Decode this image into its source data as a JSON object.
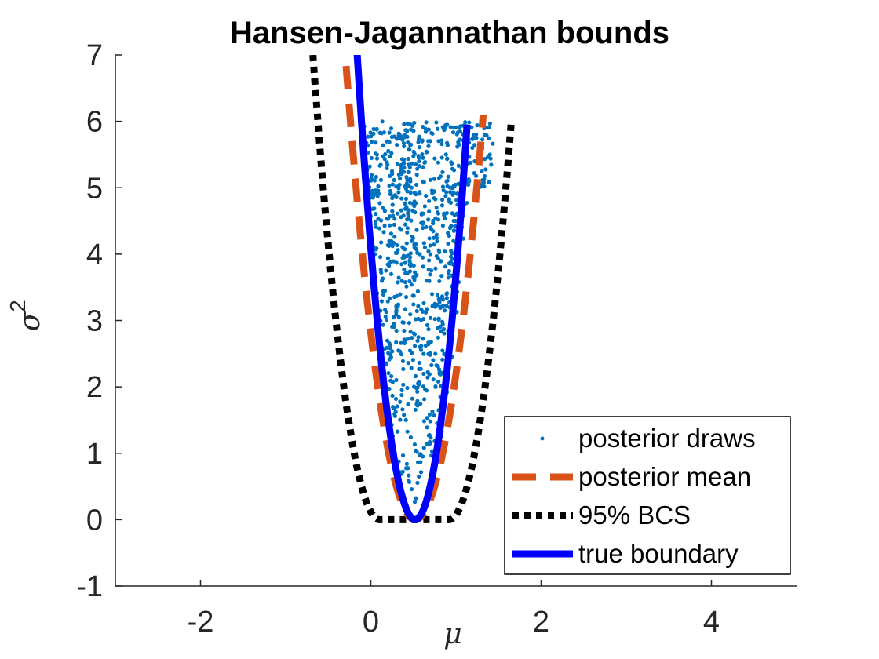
{
  "chart_data": {
    "type": "line",
    "title": "Hansen-Jagannathan bounds",
    "xlabel": "μ",
    "ylabel_base": "σ",
    "ylabel_sup": "2",
    "xlim": [
      -3,
      5
    ],
    "ylim": [
      -1,
      7
    ],
    "xticks": [
      -2,
      0,
      2,
      4
    ],
    "yticks": [
      -1,
      0,
      1,
      2,
      3,
      4,
      5,
      6,
      7
    ],
    "grid": false,
    "legend_position": "bottom-right",
    "colors": {
      "draws": "#0072BD",
      "mean": "#D95319",
      "bcs": "#000000",
      "true": "#0000FF",
      "axis": "#262626"
    },
    "series": [
      {
        "name": "posterior draws",
        "style": "points",
        "description_points": "scattered points filling the region between the true boundary curves for sigma^2 between 0 and 6"
      },
      {
        "name": "posterior mean",
        "style": "dashed",
        "lower_sigma2_range": [
          0,
          7
        ],
        "x": [
          0.52,
          0.39,
          0.24,
          0.1,
          -0.04,
          -0.18,
          -0.31
        ],
        "y": [
          0,
          1,
          2,
          3,
          4,
          5,
          6.1
        ]
      },
      {
        "name": "95% BCS",
        "style": "dotted",
        "x": [
          -0.68,
          0.1,
          0.92,
          1.65
        ],
        "y": [
          7,
          0,
          0,
          6
        ]
      },
      {
        "name": "true boundary",
        "style": "solid",
        "x": [
          -0.15,
          0.15,
          0.52,
          0.9,
          1.13
        ],
        "y": [
          7,
          3,
          0,
          3,
          6
        ]
      }
    ]
  }
}
